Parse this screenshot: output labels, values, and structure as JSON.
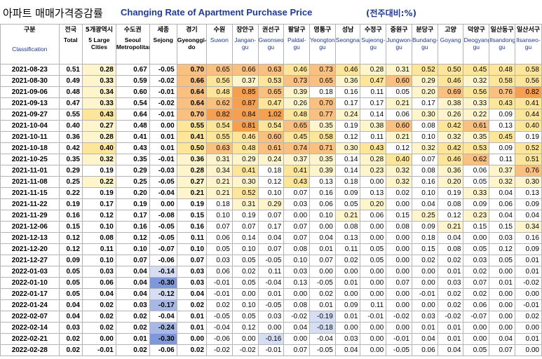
{
  "title": {
    "korean": "아파트 매매가격증감률",
    "english": "Changing Rate of Apartment Purchase Price",
    "unit": "(전주대비:%)"
  },
  "colors": {
    "orange_high": "#f5a050",
    "orange_mid": "#fac080",
    "yellow": "#fde69a",
    "light_yellow": "#fff5cc",
    "blue_dark": "#7f98d9",
    "blue_mid": "#a6b8e6",
    "blue_light": "#d6def3",
    "header_blue": "#1f3a93"
  },
  "chart_data": {
    "type": "table",
    "title": "Changing Rate of Apartment Purchase Price",
    "unit": "(전주대비:%)",
    "columns": [
      {
        "ko": "구분",
        "en": "Classification"
      },
      {
        "ko": "전국",
        "en": "Total"
      },
      {
        "ko": "5개광역시",
        "en": "5 Large Cities"
      },
      {
        "ko": "수도권",
        "en": "Seoul Metropolitan"
      },
      {
        "ko": "세종",
        "en": "Sejong"
      },
      {
        "ko": "경기",
        "en": "Gyeonggi-do"
      },
      {
        "ko": "수원",
        "en": "Suwon"
      },
      {
        "ko": "장안구",
        "en": "Jangan-gu"
      },
      {
        "ko": "권선구",
        "en": "Gwonseon-gu"
      },
      {
        "ko": "팔달구",
        "en": "Paldal-gu"
      },
      {
        "ko": "영통구",
        "en": "Yeongtong-gu"
      },
      {
        "ko": "성남",
        "en": "Seongnam"
      },
      {
        "ko": "수정구",
        "en": "Sujeong-gu"
      },
      {
        "ko": "중원구",
        "en": "Jungwon-gu"
      },
      {
        "ko": "분당구",
        "en": "Bundang-gu"
      },
      {
        "ko": "고양",
        "en": "Goyang"
      },
      {
        "ko": "덕양구",
        "en": "Deogyang-gu"
      },
      {
        "ko": "일산동구",
        "en": "Ilsandong-gu"
      },
      {
        "ko": "일산서구",
        "en": "Ilsanseo-gu"
      }
    ],
    "rows": [
      {
        "date": "2021-08-23",
        "values": [
          "0.51",
          "0.28",
          "0.67",
          "-0.05",
          "0.70",
          "0.65",
          "0.66",
          "0.63",
          "0.46",
          "0.73",
          "0.46",
          "0.28",
          "0.31",
          "0.52",
          "0.50",
          "0.45",
          "0.48",
          "0.58"
        ]
      },
      {
        "date": "2021-08-30",
        "values": [
          "0.49",
          "0.33",
          "0.59",
          "-0.02",
          "0.66",
          "0.56",
          "0.37",
          "0.53",
          "0.73",
          "0.65",
          "0.36",
          "0.47",
          "0.60",
          "0.29",
          "0.46",
          "0.32",
          "0.58",
          "0.56"
        ]
      },
      {
        "date": "2021-09-06",
        "values": [
          "0.48",
          "0.34",
          "0.60",
          "-0.01",
          "0.64",
          "0.48",
          "0.85",
          "0.65",
          "0.39",
          "0.18",
          "0.16",
          "0.11",
          "0.05",
          "0.20",
          "0.69",
          "0.56",
          "0.76",
          "0.82"
        ]
      },
      {
        "date": "2021-09-13",
        "values": [
          "0.47",
          "0.33",
          "0.54",
          "-0.02",
          "0.64",
          "0.62",
          "0.87",
          "0.47",
          "0.26",
          "0.70",
          "0.17",
          "0.17",
          "0.21",
          "0.17",
          "0.38",
          "0.33",
          "0.43",
          "0.41"
        ]
      },
      {
        "date": "2021-09-27",
        "values": [
          "0.55",
          "0.43",
          "0.64",
          "-0.01",
          "0.70",
          "0.82",
          "0.84",
          "1.02",
          "0.48",
          "0.77",
          "0.24",
          "0.14",
          "0.06",
          "0.30",
          "0.26",
          "0.22",
          "0.09",
          "0.44"
        ]
      },
      {
        "date": "2021-10-04",
        "values": [
          "0.40",
          "0.27",
          "0.48",
          "0.00",
          "0.55",
          "0.54",
          "0.81",
          "0.54",
          "0.65",
          "0.35",
          "0.19",
          "0.38",
          "0.60",
          "0.08",
          "0.42",
          "0.61",
          "0.13",
          "0.40"
        ]
      },
      {
        "date": "2021-10-11",
        "values": [
          "0.36",
          "0.28",
          "0.41",
          "0.01",
          "0.41",
          "0.55",
          "0.46",
          "0.60",
          "0.45",
          "0.58",
          "0.12",
          "0.11",
          "0.21",
          "0.10",
          "0.32",
          "0.35",
          "0.45",
          "0.19"
        ]
      },
      {
        "date": "2021-10-18",
        "values": [
          "0.42",
          "0.40",
          "0.43",
          "0.01",
          "0.50",
          "0.63",
          "0.48",
          "0.61",
          "0.74",
          "0.71",
          "0.30",
          "0.43",
          "0.12",
          "0.32",
          "0.42",
          "0.53",
          "0.09",
          "0.52"
        ]
      },
      {
        "date": "2021-10-25",
        "values": [
          "0.35",
          "0.32",
          "0.35",
          "-0.01",
          "0.36",
          "0.31",
          "0.29",
          "0.24",
          "0.37",
          "0.35",
          "0.14",
          "0.28",
          "0.40",
          "0.07",
          "0.46",
          "0.62",
          "0.11",
          "0.51"
        ]
      },
      {
        "date": "2021-11-01",
        "values": [
          "0.29",
          "0.19",
          "0.29",
          "-0.03",
          "0.28",
          "0.34",
          "0.41",
          "0.18",
          "0.41",
          "0.39",
          "0.14",
          "0.23",
          "0.32",
          "0.08",
          "0.36",
          "0.06",
          "0.37",
          "0.76"
        ]
      },
      {
        "date": "2021-11-08",
        "values": [
          "0.25",
          "0.22",
          "0.25",
          "-0.05",
          "0.27",
          "0.21",
          "0.30",
          "0.12",
          "0.43",
          "0.13",
          "0.18",
          "0.00",
          "0.32",
          "0.16",
          "0.20",
          "0.05",
          "0.32",
          "0.30"
        ]
      },
      {
        "date": "2021-11-15",
        "values": [
          "0.22",
          "0.19",
          "0.20",
          "-0.04",
          "0.21",
          "0.21",
          "0.52",
          "0.10",
          "0.07",
          "0.16",
          "0.09",
          "0.13",
          "0.02",
          "0.10",
          "0.19",
          "0.33",
          "0.04",
          "0.13"
        ]
      },
      {
        "date": "2021-11-22",
        "values": [
          "0.19",
          "0.17",
          "0.19",
          "0.00",
          "0.19",
          "0.18",
          "0.31",
          "0.29",
          "0.03",
          "0.06",
          "0.05",
          "0.20",
          "0.00",
          "0.04",
          "0.08",
          "0.09",
          "0.06",
          "0.09"
        ]
      },
      {
        "date": "2021-11-29",
        "values": [
          "0.16",
          "0.12",
          "0.17",
          "-0.08",
          "0.15",
          "0.10",
          "0.19",
          "0.07",
          "0.00",
          "0.10",
          "0.21",
          "0.06",
          "0.15",
          "0.25",
          "0.12",
          "0.23",
          "0.04",
          "0.04"
        ]
      },
      {
        "date": "2021-12-06",
        "values": [
          "0.15",
          "0.10",
          "0.16",
          "-0.05",
          "0.16",
          "0.07",
          "0.07",
          "0.17",
          "0.07",
          "0.00",
          "0.08",
          "0.00",
          "0.08",
          "0.09",
          "0.21",
          "0.15",
          "0.15",
          "0.34"
        ]
      },
      {
        "date": "2021-12-13",
        "values": [
          "0.12",
          "0.08",
          "0.12",
          "-0.05",
          "0.11",
          "0.06",
          "0.14",
          "0.04",
          "0.07",
          "0.04",
          "0.13",
          "0.00",
          "0.00",
          "0.18",
          "0.04",
          "0.00",
          "0.03",
          "0.16"
        ]
      },
      {
        "date": "2021-12-20",
        "values": [
          "0.12",
          "0.11",
          "0.10",
          "-0.07",
          "0.10",
          "0.05",
          "0.10",
          "0.07",
          "0.08",
          "0.01",
          "0.11",
          "0.05",
          "0.00",
          "0.15",
          "0.08",
          "0.05",
          "0.12",
          "0.09"
        ]
      },
      {
        "date": "2021-12-27",
        "values": [
          "0.09",
          "0.10",
          "0.07",
          "-0.06",
          "0.07",
          "0.03",
          "0.05",
          "-0.05",
          "0.10",
          "0.07",
          "0.02",
          "0.05",
          "0.00",
          "0.02",
          "0.02",
          "0.03",
          "0.05",
          "0.01"
        ]
      },
      {
        "date": "2022-01-03",
        "values": [
          "0.05",
          "0.03",
          "0.04",
          "-0.14",
          "0.03",
          "0.06",
          "0.02",
          "0.11",
          "0.03",
          "0.00",
          "0.00",
          "0.00",
          "0.00",
          "0.00",
          "0.01",
          "0.02",
          "0.00",
          "0.01"
        ]
      },
      {
        "date": "2022-01-10",
        "values": [
          "0.05",
          "0.06",
          "0.04",
          "-0.30",
          "0.03",
          "-0.01",
          "0.05",
          "-0.04",
          "0.13",
          "-0.05",
          "0.01",
          "0.00",
          "0.07",
          "0.00",
          "0.03",
          "0.07",
          "0.01",
          "-0.02"
        ]
      },
      {
        "date": "2022-01-17",
        "values": [
          "0.05",
          "0.04",
          "0.04",
          "-0.12",
          "0.04",
          "-0.01",
          "0.00",
          "0.01",
          "0.00",
          "0.02",
          "0.00",
          "0.00",
          "0.00",
          "-0.01",
          "0.02",
          "0.02",
          "0.00",
          "0.00"
        ]
      },
      {
        "date": "2022-01-24",
        "values": [
          "0.04",
          "0.02",
          "0.03",
          "-0.17",
          "0.02",
          "0.02",
          "0.10",
          "-0.05",
          "0.08",
          "0.01",
          "0.09",
          "0.11",
          "0.00",
          "0.00",
          "0.02",
          "0.06",
          "0.00",
          "-0.01"
        ]
      },
      {
        "date": "2022-02-07",
        "values": [
          "0.04",
          "0.02",
          "0.02",
          "-0.04",
          "0.01",
          "-0.05",
          "0.05",
          "0.03",
          "-0.02",
          "-0.19",
          "0.01",
          "-0.01",
          "-0.02",
          "0.03",
          "-0.02",
          "-0.07",
          "0.00",
          "0.02"
        ]
      },
      {
        "date": "2022-02-14",
        "values": [
          "0.03",
          "0.02",
          "0.02",
          "-0.24",
          "0.01",
          "-0.04",
          "0.12",
          "0.00",
          "0.04",
          "-0.18",
          "0.00",
          "0.00",
          "0.00",
          "0.01",
          "0.01",
          "0.00",
          "0.00",
          "0.00"
        ]
      },
      {
        "date": "2022-02-21",
        "values": [
          "0.02",
          "0.00",
          "0.01",
          "-0.30",
          "0.00",
          "-0.06",
          "0.00",
          "-0.16",
          "0.00",
          "-0.04",
          "0.03",
          "0.00",
          "-0.01",
          "0.04",
          "0.01",
          "0.00",
          "0.04",
          "0.01"
        ]
      },
      {
        "date": "2022-02-28",
        "values": [
          "0.02",
          "-0.01",
          "0.02",
          "-0.06",
          "0.02",
          "-0.02",
          "-0.02",
          "-0.01",
          "0.07",
          "-0.05",
          "0.04",
          "0.00",
          "-0.05",
          "0.06",
          "0.04",
          "0.05",
          "0.07",
          "0.00"
        ]
      }
    ]
  }
}
